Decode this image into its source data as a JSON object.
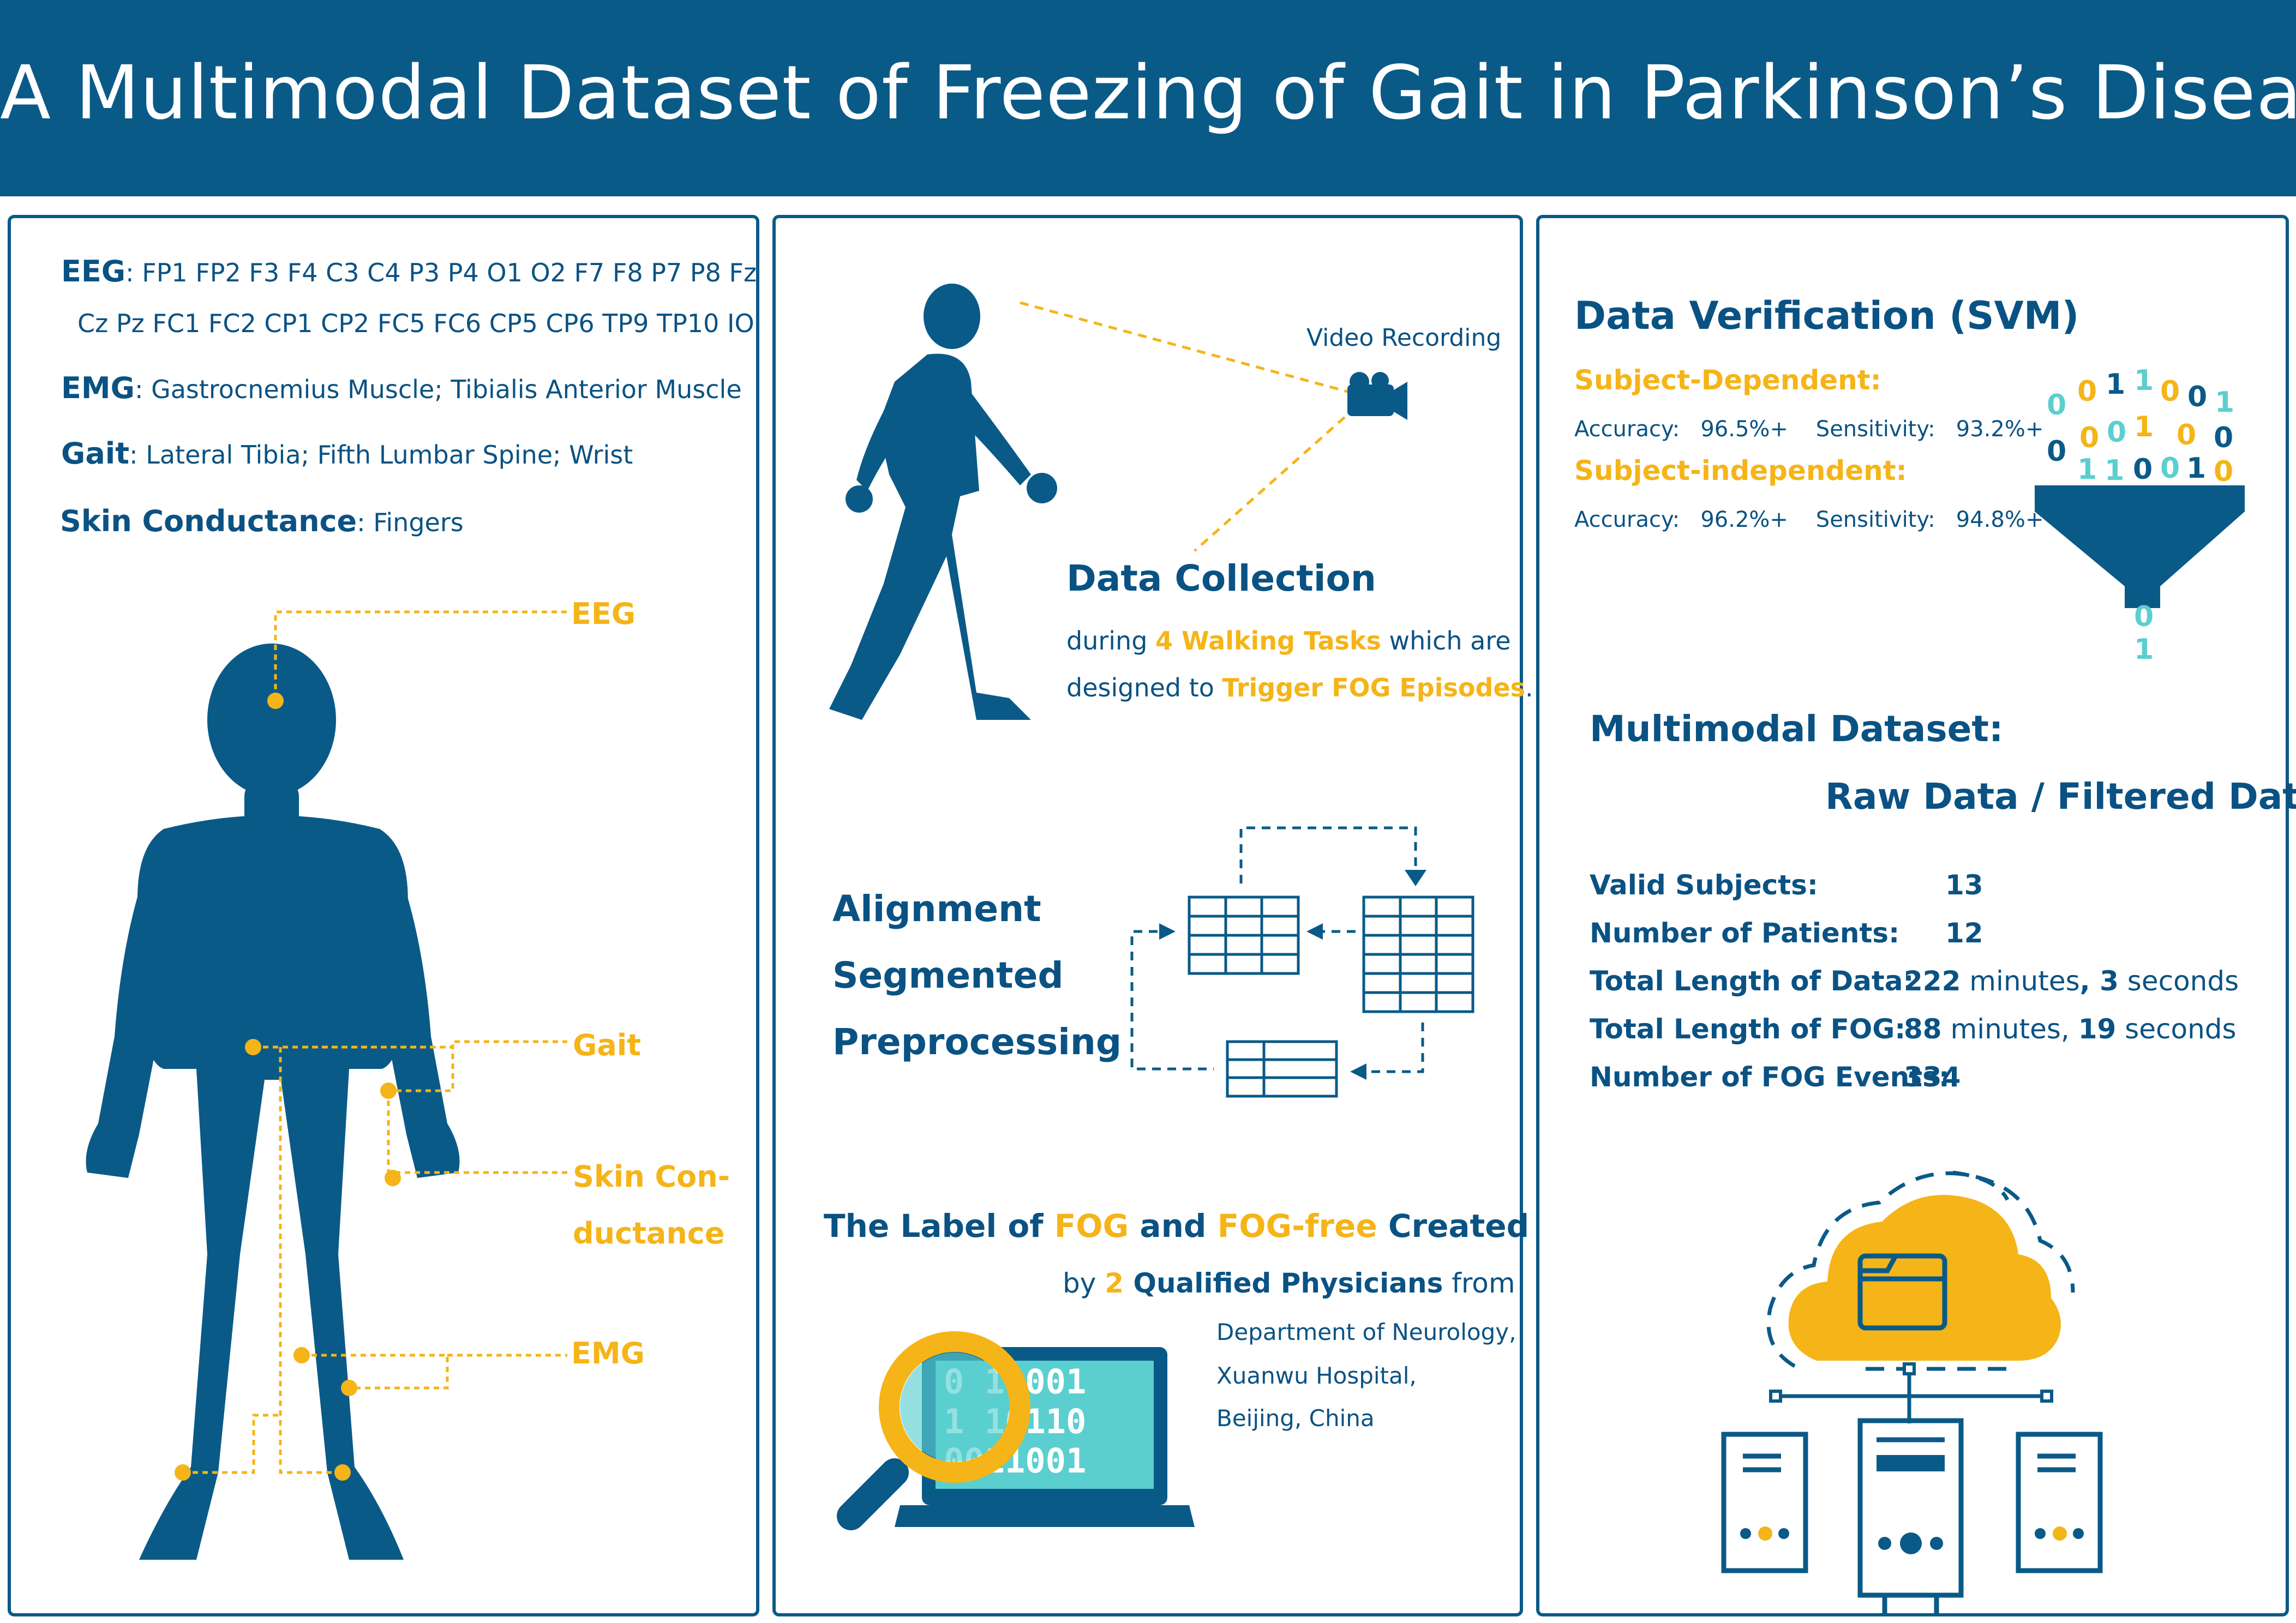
{
  "title": "A Multimodal Dataset of Freezing of Gait in Parkinson’s Disease",
  "left": {
    "eeg_label": "EEG",
    "eeg_line1": ":  FP1 FP2 F3 F4 C3 C4 P3 P4 O1 O2 F7 F8 P7 P8 Fz",
    "eeg_line2": "Cz Pz FC1 FC2 CP1 CP2 FC5 FC6 CP5 CP6 TP9 TP10 IO",
    "emg_label": "EMG",
    "emg_text": ": Gastrocnemius Muscle; Tibialis Anterior Muscle",
    "gait_label": "Gait",
    "gait_text": ":  Lateral Tibia; Fifth Lumbar Spine; Wrist",
    "skin_label": "Skin Conductance",
    "skin_text": ":  Fingers",
    "body_labels": {
      "eeg": "EEG",
      "gait": "Gait",
      "skin_1": "Skin Con-",
      "skin_2": "ductance",
      "emg": "EMG"
    }
  },
  "middle": {
    "video_recording": "Video Recording",
    "data_collection": "Data Collection",
    "dc_line1_a": "during ",
    "dc_line1_b": "4 Walking Tasks",
    "dc_line1_c": " which are",
    "dc_line2_a": "designed to ",
    "dc_line2_b": "Trigger FOG Episodes",
    "dc_line2_c": ".",
    "steps": [
      "Alignment",
      "Segmented",
      "Preprocessing"
    ],
    "label_a": "The Label of ",
    "label_b": "FOG",
    "label_c": " and ",
    "label_d": "FOG-free",
    "label_e": " Created",
    "by_a": "by ",
    "by_b": "2",
    "by_c": " Qualified Physicians",
    "by_d": " from",
    "affiliation": [
      "Department of Neurology,",
      "Xuanwu Hospital,",
      "Beijing, China"
    ],
    "binary_rows": [
      "0 10001",
      "1 10110",
      "0011001"
    ]
  },
  "right": {
    "verification_title": "Data Verification (SVM)",
    "subject_dependent": "Subject-Dependent:",
    "dep_accuracy_label": "Accuracy:",
    "dep_accuracy": "96.5%+",
    "dep_sensitivity_label": "Sensitivity:",
    "dep_sensitivity": "93.2%+",
    "subject_independent": "Subject-independent:",
    "ind_accuracy_label": "Accuracy:",
    "ind_accuracy": "96.2%+",
    "ind_sensitivity_label": "Sensitivity:",
    "ind_sensitivity": "94.8%+",
    "dataset_title": "Multimodal Dataset:",
    "dataset_subtitle": "Raw Data / Filtered Data",
    "stats": {
      "valid_subjects_label": "Valid Subjects:",
      "valid_subjects": "13",
      "patients_label": "Number of Patients:",
      "patients": "12",
      "total_data_label": "Total Length of Data:",
      "total_data_min": "222",
      "total_data_min_unit": " minutes",
      "total_data_sep": ", ",
      "total_data_sec": "3",
      "total_data_sec_unit": " seconds",
      "total_fog_label": "Total Length of FOG:",
      "total_fog_min": "88",
      "total_fog_min_unit": " minutes",
      "total_fog_sep": ", ",
      "total_fog_sec": "19",
      "total_fog_sec_unit": " seconds",
      "fog_events_label": "Number of FOG Events:",
      "fog_events": "334"
    }
  },
  "colors": {
    "primary": "#0a5a88",
    "accent": "#f5b417",
    "teal": "#5bcfcf",
    "white": "#ffffff"
  },
  "icons": [
    "human-body-icon",
    "walking-person-icon",
    "video-camera-icon",
    "table-flow-icon",
    "magnifier-laptop-icon",
    "funnel-icon",
    "cloud-server-icon"
  ]
}
